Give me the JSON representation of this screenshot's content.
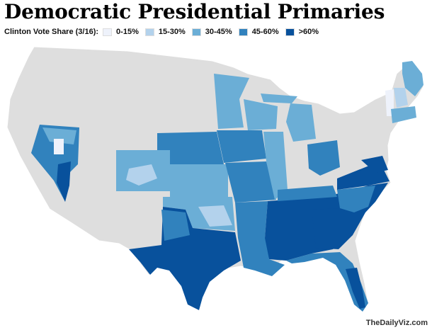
{
  "title": "Democratic Presidential Primaries",
  "legend": {
    "title": "Clinton Vote Share (3/16):",
    "items": [
      {
        "label": "0-15%",
        "color": "#eef2fb"
      },
      {
        "label": "15-30%",
        "color": "#b3d2ec"
      },
      {
        "label": "30-45%",
        "color": "#6baed6"
      },
      {
        "label": "45-60%",
        "color": "#3182bd"
      },
      {
        "label": ">60%",
        "color": "#08519c"
      }
    ]
  },
  "no_result_color": "#dedede",
  "credit": "TheDailyViz.com"
}
